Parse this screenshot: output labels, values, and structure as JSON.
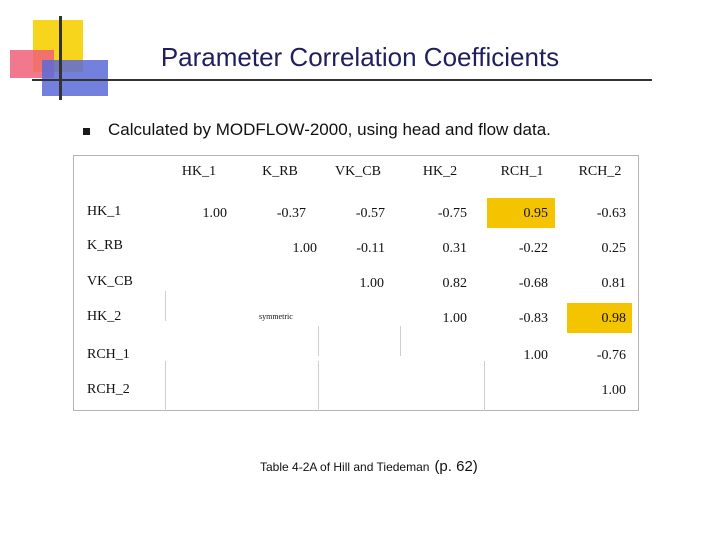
{
  "slide": {
    "title": "Parameter Correlation Coefficients",
    "bullet": "Calculated by MODFLOW-2000, using head and flow data.",
    "caption": "Table 4-2A of Hill and Tiedeman",
    "caption_page": "(p. 62)",
    "symmetric_note": "symmetric",
    "highlight_color": "#f5c400"
  },
  "table": {
    "columns": [
      "HK_1",
      "K_RB",
      "VK_CB",
      "HK_2",
      "RCH_1",
      "RCH_2"
    ],
    "rows": [
      {
        "name": "HK_1",
        "values": [
          "1.00",
          "-0.37",
          "-0.57",
          "-0.75",
          "0.95",
          "-0.63"
        ]
      },
      {
        "name": "K_RB",
        "values": [
          "",
          "1.00",
          "-0.11",
          "0.31",
          "-0.22",
          "0.25"
        ]
      },
      {
        "name": "VK_CB",
        "values": [
          "",
          "",
          "1.00",
          "0.82",
          "-0.68",
          "0.81"
        ]
      },
      {
        "name": "HK_2",
        "values": [
          "",
          "",
          "",
          "1.00",
          "-0.83",
          "0.98"
        ]
      },
      {
        "name": "RCH_1",
        "values": [
          "",
          "",
          "",
          "",
          "1.00",
          "-0.76"
        ]
      },
      {
        "name": "RCH_2",
        "values": [
          "",
          "",
          "",
          "",
          "",
          "1.00"
        ]
      }
    ],
    "highlighted": [
      {
        "row": "HK_1",
        "column": "RCH_1",
        "value": "0.95"
      },
      {
        "row": "HK_2",
        "column": "RCH_2",
        "value": "0.98"
      }
    ]
  }
}
